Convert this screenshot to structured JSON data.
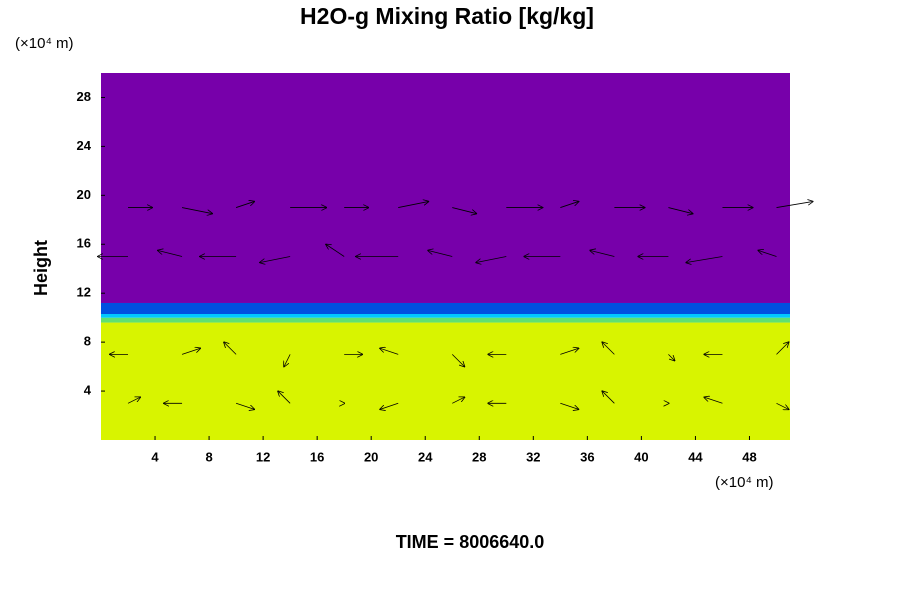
{
  "chart_data": {
    "type": "heatmap",
    "title": "H2O-g Mixing Ratio [kg/kg]",
    "y_unit": "(×10⁴ m)",
    "x_unit": "(×10⁴ m)",
    "ylabel": "Height",
    "footer": "TIME = 8006640.0",
    "xlim": [
      0,
      51
    ],
    "ylim": [
      0,
      30
    ],
    "xticks": [
      4,
      8,
      12,
      16,
      20,
      24,
      28,
      32,
      36,
      40,
      44,
      48
    ],
    "yticks": [
      4,
      8,
      12,
      16,
      20,
      24,
      28
    ],
    "bands": [
      {
        "y": [
          0,
          9.6
        ],
        "color": "#d8f400"
      },
      {
        "y": [
          9.6,
          10.0
        ],
        "color": "#60e070"
      },
      {
        "y": [
          10.0,
          10.3
        ],
        "color": "#00c8ff"
      },
      {
        "y": [
          10.3,
          11.2
        ],
        "color": "#0050e0"
      },
      {
        "y": [
          11.2,
          30
        ],
        "color": "#7700aa"
      }
    ],
    "vectors": {
      "x": [
        2,
        6,
        10,
        14,
        18,
        22,
        26,
        30,
        34,
        38,
        42,
        46,
        50,
        2,
        6,
        10,
        14,
        18,
        22,
        26,
        30,
        34,
        38,
        42,
        46,
        50,
        2,
        6,
        10,
        14,
        18,
        22,
        26,
        30,
        34,
        38,
        42,
        46,
        50,
        2,
        6,
        10,
        14,
        18,
        22,
        26,
        30,
        34,
        38,
        42,
        46,
        50
      ],
      "y": [
        3,
        3,
        3,
        3,
        3,
        3,
        3,
        3,
        3,
        3,
        3,
        3,
        3,
        7,
        7,
        7,
        7,
        7,
        7,
        7,
        7,
        7,
        7,
        7,
        7,
        7,
        15,
        15,
        15,
        15,
        15,
        15,
        15,
        15,
        15,
        15,
        15,
        15,
        15,
        19,
        19,
        19,
        19,
        19,
        19,
        19,
        19,
        19,
        19,
        19,
        19,
        19
      ],
      "u": [
        2,
        -3,
        3,
        -2,
        0,
        -3,
        2,
        -3,
        3,
        -2,
        0,
        -3,
        2,
        -3,
        3,
        -2,
        -1,
        3,
        -3,
        2,
        -3,
        3,
        -2,
        1,
        -3,
        2,
        -5,
        -4,
        -6,
        -5,
        -3,
        -7,
        -4,
        -5,
        -6,
        -4,
        -5,
        -6,
        -3,
        4,
        5,
        3,
        6,
        4,
        5,
        4,
        6,
        3,
        5,
        4,
        5,
        6
      ],
      "v": [
        1,
        0,
        -1,
        2,
        0,
        -1,
        1,
        0,
        -1,
        2,
        0,
        1,
        -1,
        0,
        1,
        2,
        -2,
        0,
        1,
        -2,
        0,
        1,
        2,
        -1,
        0,
        2,
        0,
        1,
        0,
        -1,
        2,
        0,
        1,
        -1,
        0,
        1,
        0,
        -1,
        1,
        0,
        -1,
        1,
        0,
        0,
        1,
        -1,
        0,
        1,
        0,
        -1,
        0,
        1
      ]
    }
  }
}
